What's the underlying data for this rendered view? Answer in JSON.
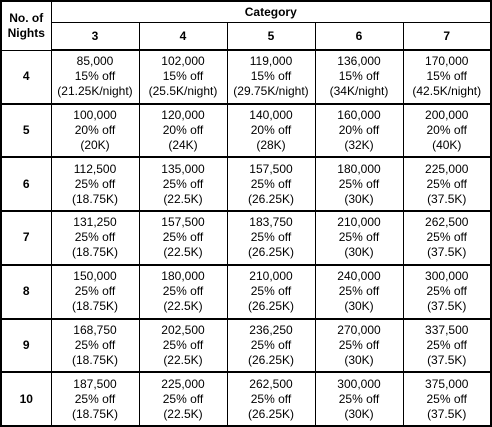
{
  "header": {
    "nights_label": "No. of Nights",
    "category_label": "Category",
    "categories": [
      "3",
      "4",
      "5",
      "6",
      "7"
    ]
  },
  "rows": [
    {
      "nights": "4",
      "cells": [
        {
          "price": "85,000",
          "discount": "15% off",
          "per_night": "(21.25K/night)"
        },
        {
          "price": "102,000",
          "discount": "15% off",
          "per_night": "(25.5K/night)"
        },
        {
          "price": "119,000",
          "discount": "15% off",
          "per_night": "(29.75K/night)"
        },
        {
          "price": "136,000",
          "discount": "15% off",
          "per_night": "(34K/night)"
        },
        {
          "price": "170,000",
          "discount": "15% off",
          "per_night": "(42.5K/night)"
        }
      ]
    },
    {
      "nights": "5",
      "cells": [
        {
          "price": "100,000",
          "discount": "20% off",
          "per_night": "(20K)"
        },
        {
          "price": "120,000",
          "discount": "20% off",
          "per_night": "(24K)"
        },
        {
          "price": "140,000",
          "discount": "20% off",
          "per_night": "(28K)"
        },
        {
          "price": "160,000",
          "discount": "20% off",
          "per_night": "(32K)"
        },
        {
          "price": "200,000",
          "discount": "20% off",
          "per_night": "(40K)"
        }
      ]
    },
    {
      "nights": "6",
      "cells": [
        {
          "price": "112,500",
          "discount": "25% off",
          "per_night": "(18.75K)"
        },
        {
          "price": "135,000",
          "discount": "25% off",
          "per_night": "(22.5K)"
        },
        {
          "price": "157,500",
          "discount": "25% off",
          "per_night": "(26.25K)"
        },
        {
          "price": "180,000",
          "discount": "25% off",
          "per_night": "(30K)"
        },
        {
          "price": "225,000",
          "discount": "25% off",
          "per_night": "(37.5K)"
        }
      ]
    },
    {
      "nights": "7",
      "cells": [
        {
          "price": "131,250",
          "discount": "25% off",
          "per_night": "(18.75K)"
        },
        {
          "price": "157,500",
          "discount": "25% off",
          "per_night": "(22.5K)"
        },
        {
          "price": "183,750",
          "discount": "25% off",
          "per_night": "(26.25K)"
        },
        {
          "price": "210,000",
          "discount": "25% off",
          "per_night": "(30K)"
        },
        {
          "price": "262,500",
          "discount": "25% off",
          "per_night": "(37.5K)"
        }
      ]
    },
    {
      "nights": "8",
      "cells": [
        {
          "price": "150,000",
          "discount": "25% off",
          "per_night": "(18.75K)"
        },
        {
          "price": "180,000",
          "discount": "25% off",
          "per_night": "(22.5K)"
        },
        {
          "price": "210,000",
          "discount": "25% off",
          "per_night": "(26.25K)"
        },
        {
          "price": "240,000",
          "discount": "25% off",
          "per_night": "(30K)"
        },
        {
          "price": "300,000",
          "discount": "25% off",
          "per_night": "(37.5K)"
        }
      ]
    },
    {
      "nights": "9",
      "cells": [
        {
          "price": "168,750",
          "discount": "25% off",
          "per_night": "(18.75K)"
        },
        {
          "price": "202,500",
          "discount": "25% off",
          "per_night": "(22.5K)"
        },
        {
          "price": "236,250",
          "discount": "25% off",
          "per_night": "(26.25K)"
        },
        {
          "price": "270,000",
          "discount": "25% off",
          "per_night": "(30K)"
        },
        {
          "price": "337,500",
          "discount": "25% off",
          "per_night": "(37.5K)"
        }
      ]
    },
    {
      "nights": "10",
      "cells": [
        {
          "price": "187,500",
          "discount": "25% off",
          "per_night": "(18.75K)"
        },
        {
          "price": "225,000",
          "discount": "25% off",
          "per_night": "(22.5K)"
        },
        {
          "price": "262,500",
          "discount": "25% off",
          "per_night": "(26.25K)"
        },
        {
          "price": "300,000",
          "discount": "25% off",
          "per_night": "(30K)"
        },
        {
          "price": "375,000",
          "discount": "25% off",
          "per_night": "(37.5K)"
        }
      ]
    }
  ]
}
